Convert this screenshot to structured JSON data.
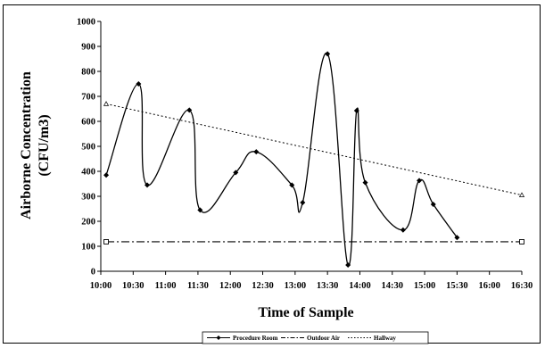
{
  "chart_data": {
    "type": "line",
    "title": "",
    "xlabel": "Time of Sample",
    "ylabel_lines": [
      "Airborne Concentration",
      "(CFU/m3)"
    ],
    "x_tick_labels": [
      "10:00",
      "10:30",
      "11:00",
      "11:30",
      "12:00",
      "12:30",
      "13:00",
      "13:30",
      "14:00",
      "14:30",
      "15:00",
      "15:30",
      "16:00",
      "16:30"
    ],
    "y_ticks": [
      0,
      100,
      200,
      300,
      400,
      500,
      600,
      700,
      800,
      900,
      1000
    ],
    "xlim": [
      "10:00",
      "16:30"
    ],
    "ylim": [
      0,
      1000
    ],
    "grid": false,
    "legend_position": "bottom-center",
    "series": [
      {
        "name": "Procedure Room",
        "style": "solid-smooth-diamond",
        "color": "#000000",
        "points": [
          {
            "x": "10:05",
            "y": 385
          },
          {
            "x": "10:35",
            "y": 750
          },
          {
            "x": "10:43",
            "y": 345
          },
          {
            "x": "11:22",
            "y": 645
          },
          {
            "x": "11:32",
            "y": 245
          },
          {
            "x": "12:05",
            "y": 395
          },
          {
            "x": "12:24",
            "y": 478
          },
          {
            "x": "12:57",
            "y": 345
          },
          {
            "x": "13:07",
            "y": 275
          },
          {
            "x": "13:30",
            "y": 870
          },
          {
            "x": "13:49",
            "y": 25
          },
          {
            "x": "13:57",
            "y": 643
          },
          {
            "x": "14:05",
            "y": 355
          },
          {
            "x": "14:40",
            "y": 165
          },
          {
            "x": "14:55",
            "y": 363
          },
          {
            "x": "15:08",
            "y": 268
          },
          {
            "x": "15:30",
            "y": 135
          }
        ]
      },
      {
        "name": "Outdoor Air",
        "style": "dash-dot-square",
        "color": "#000000",
        "points": [
          {
            "x": "10:05",
            "y": 118
          },
          {
            "x": "16:30",
            "y": 118
          }
        ]
      },
      {
        "name": "Hallway",
        "style": "dotted-triangle",
        "color": "#000000",
        "points": [
          {
            "x": "10:05",
            "y": 670
          },
          {
            "x": "16:30",
            "y": 305
          }
        ]
      }
    ]
  }
}
